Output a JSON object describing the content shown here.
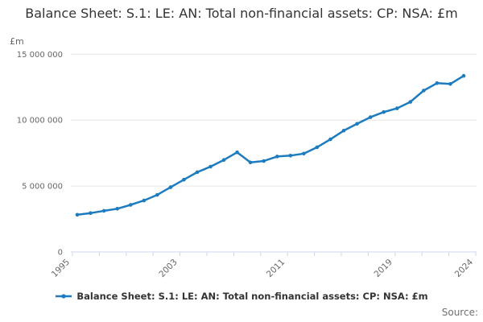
{
  "page": {
    "source_label": "Source:"
  },
  "chart_data": {
    "type": "line",
    "title": "Balance Sheet: S.1: LE: AN: Total non-financial assets: CP: NSA: £m",
    "ylabel": "£m",
    "xlabel": "",
    "legend_position": "bottom",
    "grid": "horizontal",
    "xlim": [
      1995,
      2024
    ],
    "ylim": [
      0,
      15000000
    ],
    "x_tick_labels": [
      "1995",
      "2003",
      "2011",
      "2019",
      "2024"
    ],
    "y_ticks": [
      {
        "value": 0,
        "label": "0"
      },
      {
        "value": 5000000,
        "label": "5 000 000"
      },
      {
        "value": 10000000,
        "label": "10 000 000"
      },
      {
        "value": 15000000,
        "label": "15 000 000"
      }
    ],
    "colors": {
      "series": "#1d7cbf",
      "grid": "#e6e6e6",
      "axis": "#ccd6eb",
      "tick_label": "#666666",
      "title": "#333333"
    },
    "series": [
      {
        "name": "Balance Sheet: S.1: LE: AN: Total non-financial assets: CP: NSA: £m",
        "color": "#1d7cbf",
        "x": [
          1995,
          1996,
          1997,
          1998,
          1999,
          2000,
          2001,
          2002,
          2003,
          2004,
          2005,
          2006,
          2007,
          2008,
          2009,
          2010,
          2011,
          2012,
          2013,
          2014,
          2015,
          2016,
          2017,
          2018,
          2019,
          2020,
          2021,
          2022,
          2023,
          2024
        ],
        "values": [
          2820000,
          2950000,
          3120000,
          3280000,
          3570000,
          3900000,
          4330000,
          4910000,
          5480000,
          6050000,
          6470000,
          6980000,
          7560000,
          6790000,
          6900000,
          7240000,
          7310000,
          7460000,
          7940000,
          8540000,
          9200000,
          9720000,
          10220000,
          10610000,
          10890000,
          11380000,
          12240000,
          12800000,
          12740000,
          13360000
        ]
      }
    ]
  }
}
